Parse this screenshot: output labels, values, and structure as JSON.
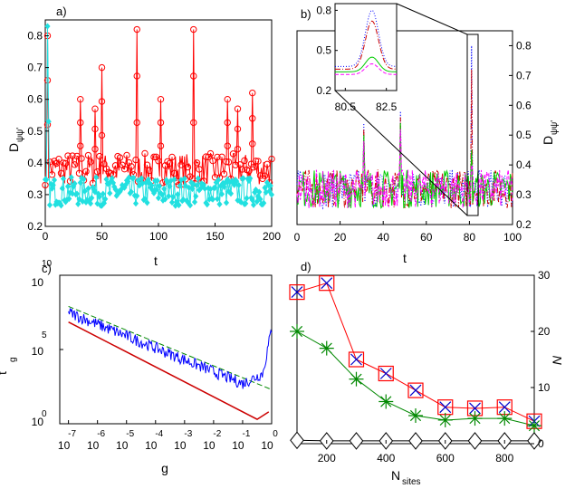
{
  "panels": {
    "a": {
      "label": "a)",
      "xlabel": "t",
      "ylabel": "D",
      "ylabel_sub": "ψψ'",
      "xticks": [
        "0",
        "50",
        "100",
        "150",
        "200"
      ],
      "yticks": [
        "0.2",
        "0.3",
        "0.4",
        "0.5",
        "0.6",
        "0.7",
        "0.8"
      ],
      "xlim": [
        0,
        200
      ],
      "ylim": [
        0.2,
        0.85
      ],
      "series_colors": {
        "red": "#ff0000",
        "cyan": "#22e0e0"
      }
    },
    "b": {
      "label": "b)",
      "xlabel": "t",
      "ylabel": "D",
      "ylabel_sub": "ψψ'",
      "xticks": [
        "0",
        "20",
        "40",
        "60",
        "80",
        "100"
      ],
      "yticks": [
        "0.2",
        "0.3",
        "0.4",
        "0.5",
        "0.6",
        "0.7",
        "0.8"
      ],
      "xlim": [
        0,
        100
      ],
      "ylim": [
        0.2,
        0.85
      ],
      "inset": {
        "xticks": [
          "80.5",
          "82.5"
        ],
        "yticks": [
          "0.2",
          "0.5",
          "0.8"
        ],
        "xlim": [
          80.0,
          83.0
        ],
        "ylim": [
          0.2,
          0.85
        ]
      },
      "series_colors": {
        "blue": "#0000ff",
        "red": "#cc0000",
        "green": "#00cc00",
        "magenta": "#ff00ff"
      }
    },
    "c": {
      "label": "c)",
      "xlabel": "g",
      "ylabel": "t",
      "ylabel_sub": "g",
      "xticks": [
        "-7",
        "-6",
        "-5",
        "-4",
        "-3",
        "-2",
        "-1",
        "0"
      ],
      "xtick_base": "10",
      "yticks": [
        {
          "base": "10",
          "exp": "10"
        },
        {
          "base": "10",
          "exp": "5"
        },
        {
          "base": "10",
          "exp": "0"
        }
      ],
      "xlim": [
        -7.3,
        0
      ],
      "ylim": [
        0,
        10
      ],
      "series_colors": {
        "blue": "#0000ff",
        "green": "#008800",
        "red": "#cc0000"
      }
    },
    "d": {
      "label": "d)",
      "xlabel": "N",
      "xlabel_sub": "sites",
      "ylabel_right": "N",
      "xticks": [
        "200",
        "400",
        "600",
        "800"
      ],
      "yticks": [
        "0",
        "10",
        "20",
        "30"
      ],
      "xlim": [
        100,
        900
      ],
      "ylim": [
        0,
        30
      ]
    }
  },
  "chart_data": [
    {
      "type": "line",
      "panel": "a",
      "title": "a)",
      "xlabel": "t",
      "ylabel": "Dψψ'",
      "xlim": [
        0,
        200
      ],
      "ylim": [
        0.2,
        0.85
      ],
      "series": [
        {
          "name": "red circles",
          "color": "#ff0000",
          "marker": "circle",
          "baseline": 0.38,
          "spikes": [
            [
              2,
              0.8
            ],
            [
              31,
              0.6
            ],
            [
              44,
              0.57
            ],
            [
              50,
              0.7
            ],
            [
              81,
              0.82
            ],
            [
              102,
              0.6
            ],
            [
              131,
              0.82
            ],
            [
              161,
              0.6
            ],
            [
              170,
              0.57
            ],
            [
              183,
              0.62
            ]
          ]
        },
        {
          "name": "cyan diamonds",
          "color": "#22e0e0",
          "marker": "diamond",
          "baseline": 0.31,
          "spikes": [
            [
              2,
              0.83
            ],
            [
              3,
              0.53
            ]
          ]
        }
      ]
    },
    {
      "type": "line",
      "panel": "b",
      "title": "b)",
      "xlabel": "t",
      "ylabel": "Dψψ'",
      "xlim": [
        0,
        100
      ],
      "ylim": [
        0.2,
        0.85
      ],
      "series": [
        {
          "name": "blue dotted",
          "color": "#0000ff",
          "peak": [
            81,
            0.8
          ]
        },
        {
          "name": "red dash-dot",
          "color": "#cc0000",
          "peak": [
            81,
            0.72
          ]
        },
        {
          "name": "green solid",
          "color": "#00cc00",
          "peak": [
            81,
            0.45
          ]
        },
        {
          "name": "magenta dashed",
          "color": "#ff00ff",
          "peak": [
            81,
            0.4
          ]
        }
      ],
      "other_peaks": [
        [
          31,
          0.54
        ],
        [
          48,
          0.58
        ]
      ]
    },
    {
      "type": "line",
      "panel": "c",
      "title": "c)",
      "xlabel": "g",
      "ylabel": "t_g",
      "x_log10": [
        -7.0,
        0.0
      ],
      "series": [
        {
          "name": "blue noisy",
          "color": "#0000ff",
          "x": [
            -7.0,
            -1.0,
            -0.3,
            0.0
          ],
          "y_log10": [
            7.5,
            2.7,
            3.4,
            6.4
          ]
        },
        {
          "name": "green dashed fit",
          "color": "#008800",
          "x": [
            -7.0,
            0.0
          ],
          "y_log10": [
            7.9,
            2.3
          ]
        },
        {
          "name": "red",
          "color": "#cc0000",
          "x": [
            -7.0,
            -0.5,
            -0.1
          ],
          "y_log10": [
            6.85,
            0.3,
            0.8
          ]
        }
      ]
    },
    {
      "type": "line",
      "panel": "d",
      "title": "d)",
      "xlabel": "N_sites",
      "ylabel": "N",
      "xlim": [
        100,
        900
      ],
      "ylim": [
        0,
        30
      ],
      "x": [
        100,
        200,
        300,
        400,
        500,
        600,
        700,
        800,
        900
      ],
      "series": [
        {
          "name": "red squares / blue crosses",
          "color": "#ff0000",
          "marker": "square-x",
          "values": [
            27,
            28.6,
            15,
            12.5,
            9.5,
            6.5,
            6.3,
            6.5,
            4
          ]
        },
        {
          "name": "green stars",
          "color": "#008800",
          "marker": "star",
          "values": [
            20,
            17,
            11.5,
            7.5,
            5,
            4.2,
            4.5,
            4.5,
            3.2
          ]
        },
        {
          "name": "black diamonds",
          "color": "#000000",
          "marker": "diamond",
          "values": [
            0.6,
            0.5,
            0.5,
            0.5,
            0.5,
            0.5,
            0.5,
            0.5,
            0.5
          ]
        }
      ]
    }
  ]
}
